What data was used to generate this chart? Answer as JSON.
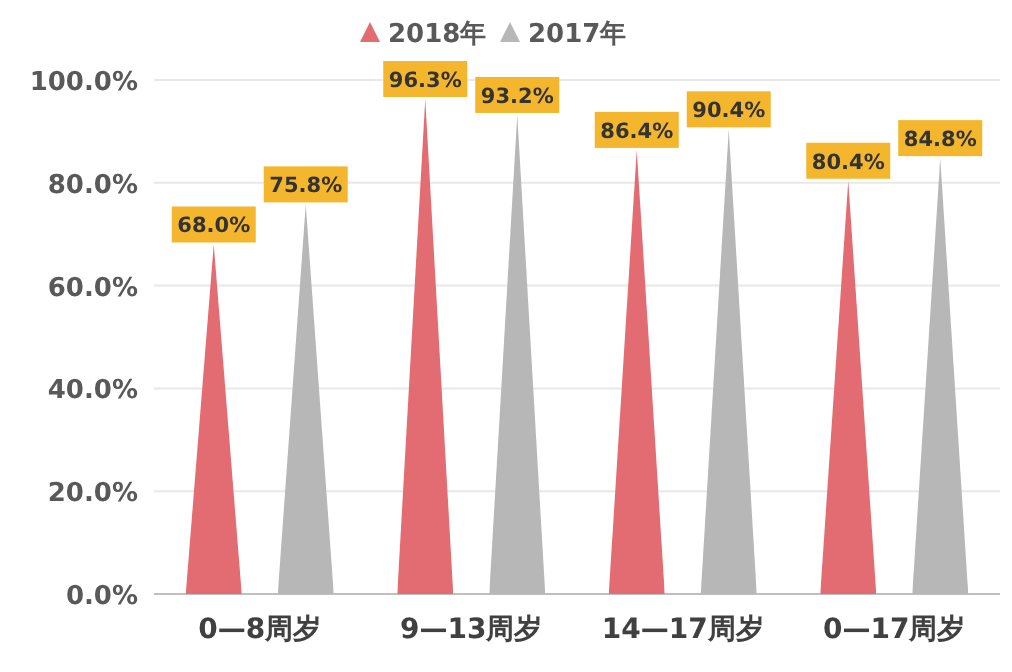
{
  "chart_data": {
    "type": "bar",
    "categories": [
      "0—8周岁",
      "9—13周岁",
      "14—17周岁",
      "0—17周岁"
    ],
    "series": [
      {
        "name": "2018年",
        "color": "#e36c73",
        "values": [
          68.0,
          96.3,
          86.4,
          80.4
        ],
        "value_labels": [
          "68.0%",
          "96.3%",
          "86.4%",
          "80.4%"
        ]
      },
      {
        "name": "2017年",
        "color": "#b7b7b7",
        "values": [
          75.8,
          93.2,
          90.4,
          84.8
        ],
        "value_labels": [
          "75.8%",
          "93.2%",
          "90.4%",
          "84.8%"
        ]
      }
    ],
    "ylim": [
      0,
      100
    ],
    "yticks": [
      {
        "value": 0,
        "label": "0.0%"
      },
      {
        "value": 20,
        "label": "20.0%"
      },
      {
        "value": 40,
        "label": "40.0%"
      },
      {
        "value": 60,
        "label": "60.0%"
      },
      {
        "value": 80,
        "label": "80.0%"
      },
      {
        "value": 100,
        "label": "100.0%"
      }
    ],
    "grid": "y",
    "legend": "top"
  }
}
